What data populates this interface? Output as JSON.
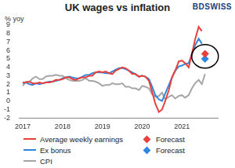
{
  "chart_data": {
    "type": "line",
    "title": "UK wages vs inflation",
    "y_label": "% yoy",
    "annotation": "BDSWISS",
    "x": [
      2017.0,
      2017.08,
      2017.17,
      2017.25,
      2017.33,
      2017.42,
      2017.5,
      2017.58,
      2017.67,
      2017.75,
      2017.83,
      2017.92,
      2018.0,
      2018.08,
      2018.17,
      2018.25,
      2018.33,
      2018.42,
      2018.5,
      2018.58,
      2018.67,
      2018.75,
      2018.83,
      2018.92,
      2019.0,
      2019.08,
      2019.17,
      2019.25,
      2019.33,
      2019.42,
      2019.5,
      2019.58,
      2019.67,
      2019.75,
      2019.83,
      2019.92,
      2020.0,
      2020.08,
      2020.17,
      2020.25,
      2020.33,
      2020.42,
      2020.5,
      2020.58,
      2020.67,
      2020.75,
      2020.83,
      2020.92,
      2021.0,
      2021.08,
      2021.17,
      2021.25,
      2021.33,
      2021.42,
      2021.5,
      2021.58
    ],
    "series": [
      {
        "name": "Average weekly earnings",
        "color": "#e8413c",
        "type": "line",
        "values": [
          2.2,
          2.2,
          2.3,
          2.1,
          2.1,
          2.2,
          2.1,
          2.2,
          2.2,
          2.3,
          2.5,
          2.5,
          2.6,
          2.8,
          2.8,
          2.6,
          2.5,
          2.7,
          2.8,
          2.8,
          3.0,
          3.0,
          3.4,
          3.5,
          3.4,
          3.5,
          3.3,
          3.2,
          3.6,
          3.8,
          4.0,
          3.9,
          3.6,
          3.2,
          3.2,
          2.9,
          3.0,
          2.9,
          2.4,
          1.1,
          -0.3,
          -1.3,
          -1.0,
          0.0,
          1.3,
          2.8,
          3.6,
          4.7,
          4.8,
          4.5,
          4.0,
          5.6,
          7.3,
          8.8,
          8.3,
          null
        ]
      },
      {
        "name": "Forecast",
        "color": "#e8413c",
        "type": "scatter",
        "marker": "diamond",
        "x": [
          2021.58
        ],
        "values": [
          5.6
        ]
      },
      {
        "name": "Ex bonus",
        "color": "#2e86de",
        "type": "line",
        "values": [
          2.1,
          2.2,
          2.0,
          1.9,
          2.1,
          2.0,
          2.1,
          2.2,
          2.3,
          2.3,
          2.4,
          2.5,
          2.7,
          2.8,
          2.9,
          2.8,
          2.7,
          2.7,
          2.9,
          3.1,
          3.1,
          3.3,
          3.4,
          3.4,
          3.4,
          3.3,
          3.3,
          3.5,
          3.7,
          3.9,
          3.9,
          3.8,
          3.6,
          3.4,
          3.2,
          2.9,
          3.0,
          2.9,
          2.6,
          1.7,
          0.7,
          0.2,
          0.0,
          0.9,
          1.9,
          2.8,
          3.6,
          4.1,
          4.2,
          4.4,
          4.5,
          5.6,
          6.6,
          7.4,
          6.8,
          null
        ]
      },
      {
        "name": "Forecast",
        "color": "#2e86de",
        "type": "scatter",
        "marker": "diamond",
        "x": [
          2021.58
        ],
        "values": [
          5.0
        ]
      },
      {
        "name": "CPI",
        "color": "#a6a6a6",
        "type": "line",
        "values": [
          1.8,
          2.3,
          2.3,
          2.7,
          2.9,
          2.6,
          2.6,
          2.9,
          3.0,
          3.0,
          3.1,
          3.0,
          3.0,
          2.7,
          2.5,
          2.4,
          2.4,
          2.4,
          2.5,
          2.7,
          2.4,
          2.4,
          2.3,
          2.1,
          1.8,
          1.9,
          1.9,
          2.1,
          2.0,
          2.0,
          2.1,
          1.7,
          1.7,
          1.5,
          1.5,
          1.3,
          1.8,
          1.7,
          1.5,
          0.8,
          0.5,
          0.6,
          1.0,
          0.2,
          0.5,
          0.7,
          0.3,
          0.6,
          0.7,
          0.4,
          0.7,
          1.5,
          2.1,
          2.5,
          2.0,
          3.2
        ]
      }
    ],
    "xlim": [
      2016.9,
      2021.9
    ],
    "xticks": [
      2017,
      2018,
      2019,
      2020,
      2021
    ],
    "ylim": [
      -2,
      9
    ],
    "yticks": [
      -2,
      -1,
      0,
      1,
      2,
      3,
      4,
      5,
      6,
      7,
      8,
      9
    ],
    "grid": false,
    "legend": "bottom"
  }
}
